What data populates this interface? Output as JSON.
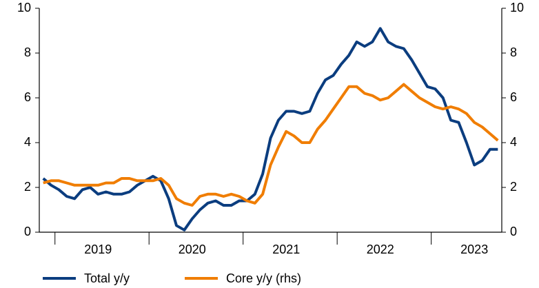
{
  "chart_data": {
    "type": "line",
    "categories": [
      null,
      null,
      null,
      null,
      null,
      null,
      null,
      "2019",
      null,
      null,
      null,
      null,
      null,
      null,
      null,
      null,
      null,
      null,
      null,
      "2020",
      null,
      null,
      null,
      null,
      null,
      null,
      null,
      null,
      null,
      null,
      null,
      "2021",
      null,
      null,
      null,
      null,
      null,
      null,
      null,
      null,
      null,
      null,
      null,
      "2022",
      null,
      null,
      null,
      null,
      null,
      null,
      null,
      null,
      null,
      null,
      null,
      "2023",
      null,
      null,
      null
    ],
    "series": [
      {
        "name": "Total y/y",
        "color": "#0b3d7f",
        "values": [
          2.4,
          2.1,
          1.9,
          1.6,
          1.5,
          1.9,
          2.0,
          1.7,
          1.8,
          1.7,
          1.7,
          1.8,
          2.1,
          2.3,
          2.5,
          2.3,
          1.5,
          0.3,
          0.1,
          0.6,
          1.0,
          1.3,
          1.4,
          1.2,
          1.2,
          1.4,
          1.4,
          1.7,
          2.6,
          4.2,
          5.0,
          5.4,
          5.4,
          5.3,
          5.4,
          6.2,
          6.8,
          7.0,
          7.5,
          7.9,
          8.5,
          8.3,
          8.5,
          9.1,
          8.5,
          8.3,
          8.2,
          7.7,
          7.1,
          6.5,
          6.4,
          6.0,
          5.0,
          4.9,
          4.0,
          3.0,
          3.2,
          3.7,
          3.7
        ]
      },
      {
        "name": "Core y/y (rhs)",
        "color": "#f07d00",
        "axis": "y2",
        "values": [
          2.2,
          2.3,
          2.3,
          2.2,
          2.1,
          2.1,
          2.1,
          2.1,
          2.2,
          2.2,
          2.4,
          2.4,
          2.3,
          2.3,
          2.3,
          2.4,
          2.1,
          1.5,
          1.3,
          1.2,
          1.6,
          1.7,
          1.7,
          1.6,
          1.7,
          1.6,
          1.4,
          1.3,
          1.7,
          3.0,
          3.8,
          4.5,
          4.3,
          4.0,
          4.0,
          4.6,
          5.0,
          5.5,
          6.0,
          6.5,
          6.5,
          6.2,
          6.1,
          5.9,
          6.0,
          6.3,
          6.6,
          6.3,
          6.0,
          5.8,
          5.6,
          5.5,
          5.6,
          5.5,
          5.3,
          4.9,
          4.7,
          4.4,
          4.1
        ]
      }
    ],
    "ylim": [
      0,
      10
    ],
    "yticks": [
      0,
      2,
      4,
      6,
      8,
      10
    ],
    "y2lim": [
      0,
      10
    ],
    "y2ticks": [
      0,
      2,
      4,
      6,
      8,
      10
    ],
    "legend": "bottom"
  }
}
